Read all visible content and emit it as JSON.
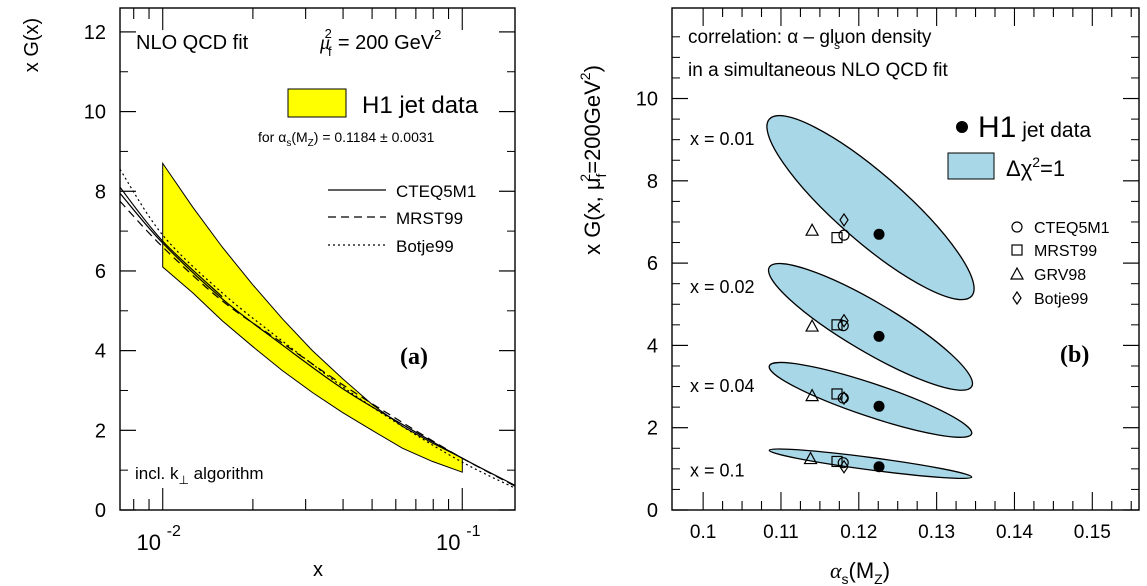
{
  "chart_data": [
    {
      "panel": "a",
      "type": "area",
      "label": "(a)",
      "xlabel": "x",
      "ylabel": "x G(x)",
      "xscale": "log",
      "xlim": [
        0.0072,
        0.15
      ],
      "ylim": [
        0,
        12.6
      ],
      "x_ticks": [
        {
          "value": 0.01,
          "base": "10",
          "exp": "-2"
        },
        {
          "value": 0.1,
          "base": "10",
          "exp": "-1"
        }
      ],
      "y_ticks": [
        0,
        2,
        4,
        6,
        8,
        10,
        12
      ],
      "annotations": {
        "fit": "NLO QCD fit",
        "scale_sym": "μ",
        "scale_sub": "f",
        "scale_sup": "2",
        "scale_val": "= 200 GeV",
        "scale_val_sup": "2",
        "coupling_pre": "for α",
        "coupling_sub": "s",
        "coupling_post": "(M",
        "coupling_sub2": "Z",
        "coupling_val": ") = 0.1184 ± 0.0031",
        "algo_pre": "incl. k",
        "algo_sub": "⊥",
        "algo_post": " algorithm"
      },
      "band": {
        "name": "H1 jet data",
        "color": "#ffff00",
        "x": [
          0.01,
          0.0126,
          0.0158,
          0.02,
          0.0251,
          0.0316,
          0.0398,
          0.05,
          0.0631,
          0.0794,
          0.1
        ],
        "upper": [
          8.7,
          7.6,
          6.6,
          5.65,
          4.8,
          4.0,
          3.3,
          2.65,
          2.1,
          1.68,
          1.3
        ],
        "lower": [
          6.1,
          5.45,
          4.75,
          4.1,
          3.5,
          2.95,
          2.45,
          2.0,
          1.55,
          1.22,
          0.95
        ]
      },
      "series": [
        {
          "name": "CTEQ5M1",
          "style": "solid",
          "x": [
            0.0072,
            0.01,
            0.0158,
            0.025,
            0.0398,
            0.063,
            0.1,
            0.15
          ],
          "values": [
            7.95,
            6.7,
            5.3,
            4.15,
            3.05,
            2.15,
            1.3,
            0.62
          ]
        },
        {
          "name": "MRST99",
          "style": "dashed",
          "x": [
            0.0072,
            0.01,
            0.0158,
            0.025,
            0.0398,
            0.063,
            0.1,
            0.15
          ],
          "values": [
            7.75,
            6.6,
            5.25,
            4.2,
            3.15,
            2.2,
            1.3,
            0.6
          ]
        },
        {
          "name": "Botje99",
          "style": "dotted",
          "x": [
            0.0072,
            0.01,
            0.0158,
            0.025,
            0.0398,
            0.063,
            0.1,
            0.15
          ],
          "values": [
            8.55,
            6.9,
            5.45,
            4.25,
            3.1,
            2.1,
            1.2,
            0.55
          ]
        },
        {
          "name": "",
          "style": "solid",
          "x": [
            0.0072,
            0.01,
            0.0158
          ],
          "values": [
            8.1,
            6.75,
            5.35
          ]
        }
      ]
    },
    {
      "panel": "b",
      "type": "scatter",
      "label": "(b)",
      "xlabel_sym": "α",
      "xlabel_sub": "s",
      "xlabel_post": "(M",
      "xlabel_sub2": "Z",
      "xlabel_end": ")",
      "ylabel_pre": "x G(x, μ",
      "ylabel_sub": "f",
      "ylabel_sup": "2",
      "ylabel_post": "=200GeV",
      "ylabel_sup2": "2",
      "ylabel_end": ")",
      "xlim": [
        0.096,
        0.156
      ],
      "ylim": [
        0,
        12.2
      ],
      "x_ticks": [
        0.1,
        0.11,
        0.12,
        0.13,
        0.14,
        0.15
      ],
      "y_ticks": [
        0,
        2,
        4,
        6,
        8,
        10
      ],
      "title_lines": [
        "correlation:   α  – gluon density",
        "in a simultaneous NLO QCD fit"
      ],
      "title_sub": "s",
      "legend": {
        "h1_big": "H1",
        "h1_small": " jet data",
        "chi_pre": "Δχ",
        "chi_sup": "2",
        "chi_post": "=1",
        "ellipse_color": "#a8d8e8"
      },
      "ellipses": [
        {
          "label": "x = 0.01",
          "center": [
            0.1222,
            7.4
          ],
          "tip_left": [
            0.1085,
            9.5
          ],
          "tip_right": [
            0.1345,
            5.2
          ],
          "half_width": 0.82
        },
        {
          "label": "x = 0.02",
          "center": [
            0.1222,
            4.5
          ],
          "tip_left": [
            0.1085,
            5.9
          ],
          "tip_right": [
            0.1345,
            3.0
          ],
          "half_width": 0.6
        },
        {
          "label": "x = 0.04",
          "center": [
            0.1222,
            2.65
          ],
          "tip_left": [
            0.1085,
            3.5
          ],
          "tip_right": [
            0.1345,
            1.85
          ],
          "half_width": 0.4
        },
        {
          "label": "x = 0.1",
          "center": [
            0.1222,
            1.1
          ],
          "tip_left": [
            0.1085,
            1.45
          ],
          "tip_right": [
            0.1345,
            0.8
          ],
          "half_width": 0.15
        }
      ],
      "points": [
        {
          "name": "H1 jet data",
          "marker": "filled-circle",
          "x": [
            0.1226,
            0.1226,
            0.1226,
            0.1226
          ],
          "y": [
            6.7,
            4.22,
            2.52,
            1.05
          ]
        },
        {
          "name": "CTEQ5M1",
          "marker": "open-circle",
          "x": [
            0.1181,
            0.118,
            0.118,
            0.118
          ],
          "y": [
            6.68,
            4.48,
            2.72,
            1.15
          ]
        },
        {
          "name": "MRST99",
          "marker": "open-square",
          "x": [
            0.1172,
            0.1172,
            0.1172,
            0.1172
          ],
          "y": [
            6.62,
            4.5,
            2.82,
            1.18
          ]
        },
        {
          "name": "GRV98",
          "marker": "open-triangle",
          "x": [
            0.114,
            0.114,
            0.114,
            0.1138
          ],
          "y": [
            6.8,
            4.47,
            2.78,
            1.25
          ]
        },
        {
          "name": "Botje99",
          "marker": "open-diamond",
          "x": [
            0.1181,
            0.1181,
            0.1181,
            0.1181
          ],
          "y": [
            7.05,
            4.6,
            2.72,
            1.05
          ]
        }
      ]
    }
  ]
}
